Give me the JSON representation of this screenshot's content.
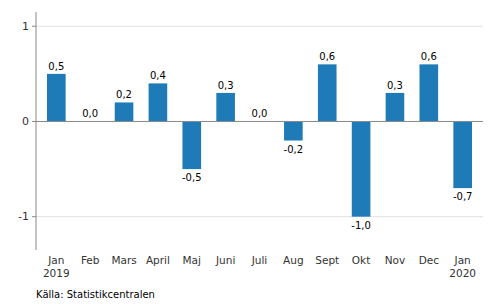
{
  "chart_data": {
    "type": "bar",
    "categories": [
      "Jan\n2019",
      "Feb",
      "Mars",
      "April",
      "Maj",
      "Juni",
      "Juli",
      "Aug",
      "Sept",
      "Okt",
      "Nov",
      "Dec",
      "Jan\n2020"
    ],
    "values": [
      0.5,
      0.0,
      0.2,
      0.4,
      -0.5,
      0.3,
      0.0,
      -0.2,
      0.6,
      -1.0,
      0.3,
      0.6,
      -0.7
    ],
    "value_labels": [
      "0,5",
      "0,0",
      "0,2",
      "0,4",
      "-0,5",
      "0,3",
      "0,0",
      "-0,2",
      "0,6",
      "-1,0",
      "0,3",
      "0,6",
      "-0,7"
    ],
    "data_labels": true,
    "color": "#1f7bb8",
    "ylim": [
      -1.35,
      1.15
    ],
    "yticks": [
      -1,
      0,
      1
    ],
    "grid": true,
    "annotations": [
      "Källa: Statistikcentralen"
    ]
  }
}
